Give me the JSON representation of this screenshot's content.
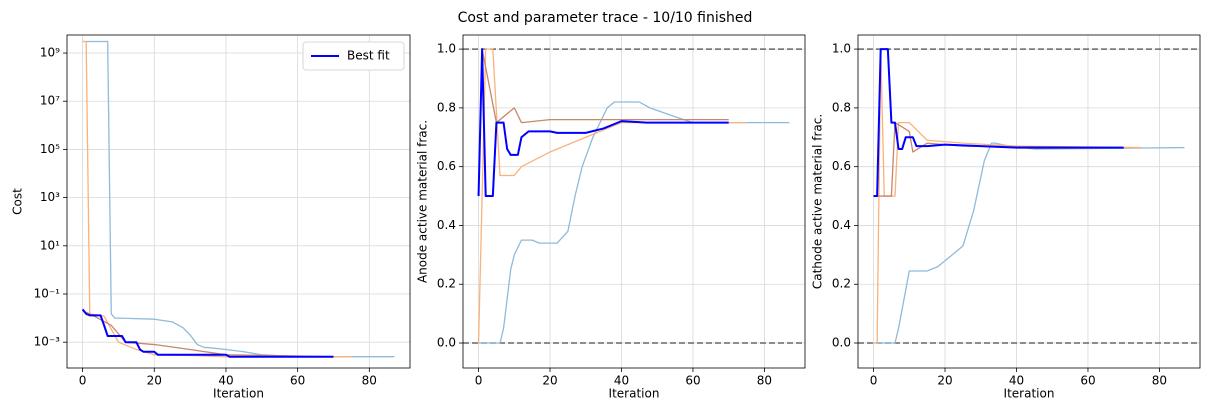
{
  "title": "Cost and parameter trace - 10/10 finished",
  "chart_data": [
    {
      "type": "line",
      "ylabel": "Cost",
      "xlabel": "Iteration",
      "ylog": true,
      "grid": true,
      "legend": "upper right",
      "xlim": [
        -4.35,
        91.35
      ],
      "xticks": [
        0,
        20,
        40,
        60,
        80
      ],
      "ylim": [
        8.5e-05,
        5600000000
      ],
      "yticks": [
        {
          "value": 0.001,
          "label": "10⁻³"
        },
        {
          "value": 0.1,
          "label": "10⁻¹"
        },
        {
          "value": 10,
          "label": "10¹"
        },
        {
          "value": 1000,
          "label": "10³"
        },
        {
          "value": 100000,
          "label": "10⁵"
        },
        {
          "value": 10000000,
          "label": "10⁷"
        },
        {
          "value": 1000000000,
          "label": "10⁹"
        }
      ],
      "series": [
        {
          "color": "#8fbbd9",
          "x": [
            0,
            7,
            8,
            9,
            10,
            20,
            25,
            28,
            30,
            32,
            34,
            35,
            40,
            45,
            50,
            60,
            70,
            80,
            87
          ],
          "values": [
            3000000000,
            3000000000,
            0.015,
            0.01,
            0.01,
            0.009,
            0.007,
            0.004,
            0.002,
            0.0008,
            0.0006,
            0.0006,
            0.0005,
            0.0004,
            0.0003,
            0.00025,
            0.00025,
            0.00025,
            0.00025
          ]
        },
        {
          "color": "#f9b27a",
          "x": [
            0,
            1,
            2,
            6,
            10,
            15,
            20,
            30,
            40,
            75
          ],
          "values": [
            3000000000,
            3000000000,
            0.015,
            0.012,
            0.001,
            0.0005,
            0.0003,
            0.00028,
            0.00025,
            0.00025
          ]
        },
        {
          "color": "#c8866a",
          "x": [
            0,
            2,
            8,
            12,
            20,
            30,
            40,
            70
          ],
          "values": [
            0.02,
            0.015,
            0.005,
            0.001,
            0.0008,
            0.0005,
            0.0003,
            0.00025
          ]
        },
        {
          "name": "Best fit",
          "color": "#0000ff",
          "x": [
            0,
            1,
            2,
            5,
            6,
            7,
            11,
            12,
            15,
            16,
            17,
            20,
            21,
            40,
            41,
            70
          ],
          "values": [
            0.023,
            0.015,
            0.013,
            0.013,
            0.005,
            0.0018,
            0.0018,
            0.001,
            0.001,
            0.0005,
            0.0004,
            0.0004,
            0.0003,
            0.0003,
            0.00025,
            0.00025
          ]
        }
      ]
    },
    {
      "type": "line",
      "ylabel": "Anode active material frac.",
      "xlabel": "Iteration",
      "grid": true,
      "xlim": [
        -4.35,
        91.35
      ],
      "xticks": [
        0,
        20,
        40,
        60,
        80
      ],
      "ylim": [
        -0.085,
        1.048
      ],
      "yticks": [
        {
          "value": 0,
          "label": "0.0"
        },
        0.2,
        0.4,
        0.6,
        0.8,
        {
          "value": 1,
          "label": "1.0"
        }
      ],
      "hlines": [
        0,
        1
      ],
      "hline_color": "#666666",
      "series": [
        {
          "color": "#8fbbd9",
          "x": [
            0,
            6,
            7,
            9,
            10,
            12,
            15,
            17,
            22,
            25,
            27,
            29,
            32,
            36,
            38,
            45,
            48,
            55,
            60,
            87
          ],
          "values": [
            0,
            0,
            0.05,
            0.25,
            0.3,
            0.35,
            0.35,
            0.34,
            0.34,
            0.38,
            0.5,
            0.6,
            0.7,
            0.8,
            0.82,
            0.82,
            0.8,
            0.77,
            0.75,
            0.75
          ]
        },
        {
          "color": "#f9b27a",
          "x": [
            0,
            2,
            4,
            6,
            10,
            12,
            20,
            30,
            40,
            75
          ],
          "values": [
            0,
            1,
            1,
            0.57,
            0.57,
            0.6,
            0.65,
            0.7,
            0.75,
            0.75
          ]
        },
        {
          "color": "#c8866a",
          "x": [
            0,
            1,
            5,
            10,
            12,
            20,
            70
          ],
          "values": [
            0.5,
            1,
            0.75,
            0.8,
            0.75,
            0.76,
            0.76
          ]
        },
        {
          "color": "#0000ff",
          "x": [
            0,
            1,
            2,
            4,
            5,
            7,
            8,
            9,
            11,
            12,
            14,
            20,
            22,
            30,
            35,
            40,
            47,
            70
          ],
          "values": [
            0.5,
            1,
            0.5,
            0.5,
            0.75,
            0.75,
            0.66,
            0.64,
            0.64,
            0.7,
            0.72,
            0.72,
            0.715,
            0.715,
            0.73,
            0.755,
            0.75,
            0.75
          ]
        }
      ]
    },
    {
      "type": "line",
      "ylabel": "Cathode active material frac.",
      "xlabel": "Iteration",
      "grid": true,
      "xlim": [
        -4.35,
        91.35
      ],
      "xticks": [
        0,
        20,
        40,
        60,
        80
      ],
      "ylim": [
        -0.085,
        1.048
      ],
      "yticks": [
        {
          "value": 0,
          "label": "0.0"
        },
        0.2,
        0.4,
        0.6,
        0.8,
        {
          "value": 1,
          "label": "1.0"
        }
      ],
      "hlines": [
        0,
        1
      ],
      "hline_color": "#666666",
      "series": [
        {
          "color": "#8fbbd9",
          "x": [
            0,
            6,
            7,
            9,
            10,
            15,
            18,
            22,
            25,
            28,
            31,
            33,
            34,
            38,
            45,
            87
          ],
          "values": [
            0,
            0,
            0.05,
            0.18,
            0.245,
            0.245,
            0.26,
            0.3,
            0.33,
            0.45,
            0.62,
            0.68,
            0.68,
            0.67,
            0.66,
            0.665
          ]
        },
        {
          "color": "#f9b27a",
          "x": [
            0,
            1,
            2,
            3,
            6,
            7,
            10,
            15,
            25,
            40,
            75
          ],
          "values": [
            0,
            0,
            1,
            0.5,
            0.5,
            0.75,
            0.75,
            0.69,
            0.68,
            0.67,
            0.665
          ]
        },
        {
          "color": "#c8866a",
          "x": [
            0,
            5,
            6,
            10,
            11,
            15,
            25,
            70
          ],
          "values": [
            0.5,
            0.5,
            0.75,
            0.72,
            0.65,
            0.68,
            0.67,
            0.665
          ]
        },
        {
          "color": "#0000ff",
          "x": [
            0,
            1,
            2,
            4,
            5,
            6,
            7,
            8,
            9,
            11,
            12,
            15,
            20,
            30,
            40,
            70
          ],
          "values": [
            0.5,
            0.5,
            1,
            1,
            0.75,
            0.75,
            0.66,
            0.66,
            0.7,
            0.7,
            0.67,
            0.67,
            0.675,
            0.67,
            0.665,
            0.665
          ]
        }
      ]
    }
  ]
}
